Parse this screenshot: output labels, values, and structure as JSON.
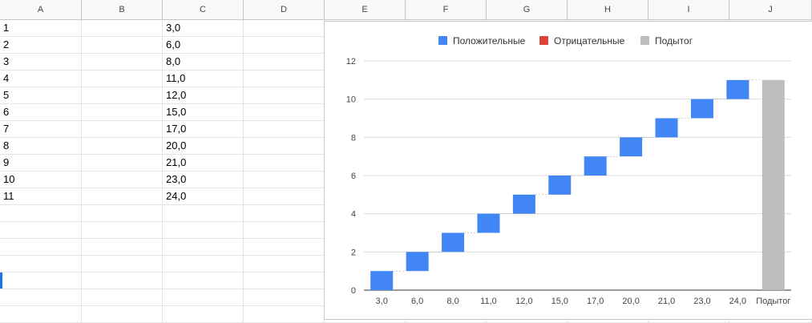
{
  "columns": [
    "A",
    "B",
    "C",
    "D",
    "E",
    "F",
    "G",
    "H",
    "I",
    "J"
  ],
  "rows": [
    {
      "a": "1",
      "c": "3,0"
    },
    {
      "a": "2",
      "c": "6,0"
    },
    {
      "a": "3",
      "c": "8,0"
    },
    {
      "a": "4",
      "c": "11,0"
    },
    {
      "a": "5",
      "c": "12,0"
    },
    {
      "a": "6",
      "c": "15,0"
    },
    {
      "a": "7",
      "c": "17,0"
    },
    {
      "a": "8",
      "c": "20,0"
    },
    {
      "a": "9",
      "c": "21,0"
    },
    {
      "a": "10",
      "c": "23,0"
    },
    {
      "a": "11",
      "c": "24,0"
    }
  ],
  "chart_data": {
    "type": "bar",
    "subtype": "waterfall",
    "legend": [
      {
        "name": "Положительные",
        "color": "#4285f4"
      },
      {
        "name": "Отрицательные",
        "color": "#db4437"
      },
      {
        "name": "Подытог",
        "color": "#bdbdbd"
      }
    ],
    "legend_position": "top",
    "categories": [
      "3,0",
      "6,0",
      "8,0",
      "11,0",
      "12,0",
      "15,0",
      "17,0",
      "20,0",
      "21,0",
      "23,0",
      "24,0",
      "Подытог"
    ],
    "steps": [
      {
        "start": 0,
        "end": 1
      },
      {
        "start": 1,
        "end": 2
      },
      {
        "start": 2,
        "end": 3
      },
      {
        "start": 3,
        "end": 4
      },
      {
        "start": 4,
        "end": 5
      },
      {
        "start": 5,
        "end": 6
      },
      {
        "start": 6,
        "end": 7
      },
      {
        "start": 7,
        "end": 8
      },
      {
        "start": 8,
        "end": 9
      },
      {
        "start": 9,
        "end": 10
      },
      {
        "start": 10,
        "end": 11
      }
    ],
    "subtotal": 11,
    "y_ticks": [
      "0",
      "2",
      "4",
      "6",
      "8",
      "10",
      "12"
    ],
    "ylim": [
      0,
      12
    ],
    "grid": true,
    "colors": {
      "positive": "#4285f4",
      "negative": "#db4437",
      "subtotal": "#bdbdbd"
    }
  }
}
